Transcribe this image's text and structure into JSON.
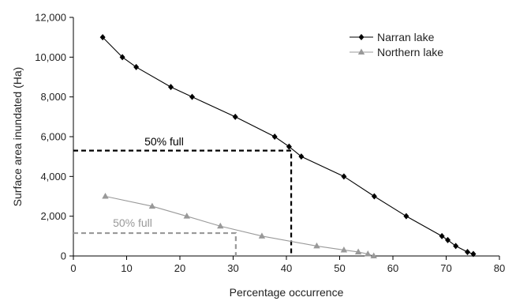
{
  "chart_data": {
    "type": "line",
    "xlabel": "Percentage occurrence",
    "ylabel": "Surface area inundated (Ha)",
    "xlim": [
      0,
      80
    ],
    "ylim": [
      0,
      12000
    ],
    "x_ticks": [
      "0",
      "10",
      "20",
      "30",
      "40",
      "50",
      "60",
      "70",
      "80"
    ],
    "y_ticks": [
      "0",
      "2,000",
      "4,000",
      "6,000",
      "8,000",
      "10,000",
      "12,000"
    ],
    "grid": false,
    "legend_position": "top-right",
    "series": [
      {
        "name": "Narran lake",
        "color": "#000000",
        "marker": "diamond",
        "points": [
          [
            5.5,
            11000
          ],
          [
            9.2,
            10000
          ],
          [
            11.8,
            9500
          ],
          [
            18.3,
            8500
          ],
          [
            22.3,
            8000
          ],
          [
            30.4,
            7000
          ],
          [
            37.8,
            6000
          ],
          [
            40.5,
            5500
          ],
          [
            42.8,
            5000
          ],
          [
            50.8,
            4000
          ],
          [
            56.5,
            3000
          ],
          [
            62.5,
            2000
          ],
          [
            69.2,
            1000
          ],
          [
            70.3,
            800
          ],
          [
            71.8,
            500
          ],
          [
            74.0,
            200
          ],
          [
            75.1,
            100
          ]
        ]
      },
      {
        "name": "Northern lake",
        "color": "#999999",
        "marker": "triangle",
        "points": [
          [
            6.0,
            3000
          ],
          [
            14.8,
            2500
          ],
          [
            21.3,
            2000
          ],
          [
            27.6,
            1500
          ],
          [
            35.4,
            1000
          ],
          [
            45.7,
            500
          ],
          [
            50.8,
            300
          ],
          [
            53.5,
            200
          ],
          [
            55.3,
            100
          ],
          [
            56.4,
            0
          ]
        ]
      }
    ],
    "annotations": [
      {
        "text": "50% full",
        "color": "#000000",
        "x": 40.9,
        "y": 5300
      },
      {
        "text": "50% full",
        "color": "#999999",
        "x": 30.5,
        "y": 1150
      }
    ]
  }
}
